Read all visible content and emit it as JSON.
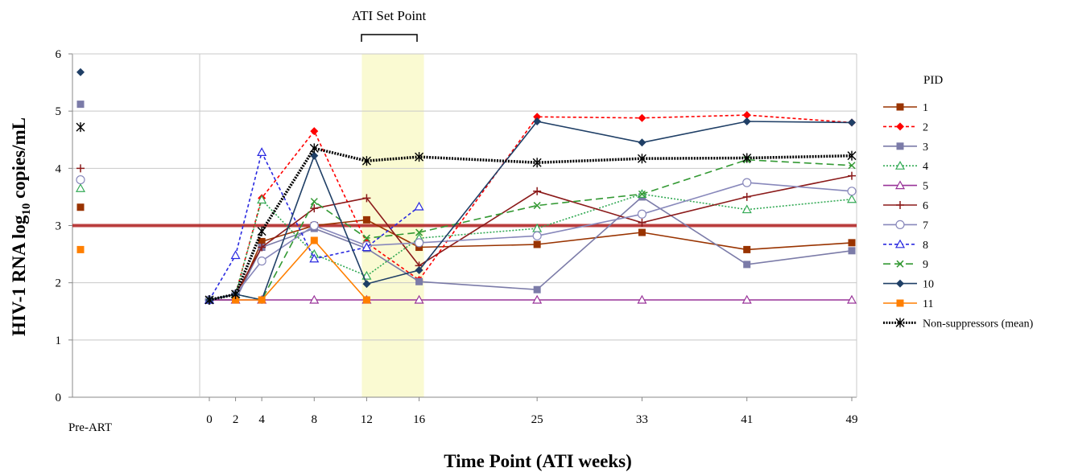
{
  "chart_data": {
    "type": "line",
    "title": "",
    "xlabel": "Time Point (ATI weeks)",
    "ylabel_main": "HIV-1 RNA log",
    "ylabel_sub": "10",
    "ylabel_rest": " copies/mL",
    "ylim": [
      0,
      6
    ],
    "yticks": [
      0,
      1,
      2,
      3,
      4,
      5,
      6
    ],
    "pre_art_label": "Pre-ART",
    "xticks": [
      0,
      2,
      4,
      8,
      12,
      16,
      25,
      33,
      41,
      49
    ],
    "xtick_labels": [
      "0",
      "2",
      "4",
      "8",
      "12",
      "16",
      "25",
      "33",
      "41",
      "49"
    ],
    "threshold": 3,
    "threshold_color": "#b22222",
    "shaded_range": [
      12,
      16
    ],
    "shaded_color": "#fafad2",
    "annotation": "ATI Set Point",
    "grid": true,
    "legend_title": "PID",
    "legend_position": "right",
    "series": [
      {
        "name": "1",
        "color": "#993300",
        "marker": "square",
        "dash": "solid",
        "pre_art": 3.32,
        "points": [
          [
            0,
            1.7
          ],
          [
            2,
            1.7
          ],
          [
            4,
            2.72
          ],
          [
            8,
            3.0
          ],
          [
            12,
            3.1
          ],
          [
            16,
            2.62
          ],
          [
            25,
            2.67
          ],
          [
            33,
            2.88
          ],
          [
            41,
            2.58
          ],
          [
            49,
            2.7
          ]
        ]
      },
      {
        "name": "2",
        "color": "#ff0000",
        "marker": "diamond",
        "dash": "short",
        "pre_art": null,
        "points": [
          [
            0,
            1.7
          ],
          [
            2,
            1.8
          ],
          [
            4,
            3.48
          ],
          [
            8,
            4.65
          ],
          [
            12,
            2.7
          ],
          [
            16,
            2.05
          ],
          [
            25,
            4.9
          ],
          [
            33,
            4.88
          ],
          [
            41,
            4.93
          ],
          [
            49,
            4.8
          ]
        ]
      },
      {
        "name": "3",
        "color": "#7b7ba8",
        "marker": "square",
        "dash": "solid",
        "pre_art": 5.12,
        "points": [
          [
            0,
            1.7
          ],
          [
            2,
            1.7
          ],
          [
            4,
            2.62
          ],
          [
            8,
            2.95
          ],
          [
            12,
            2.6
          ],
          [
            16,
            2.02
          ],
          [
            25,
            1.88
          ],
          [
            33,
            3.5
          ],
          [
            41,
            2.32
          ],
          [
            49,
            2.56
          ]
        ]
      },
      {
        "name": "4",
        "color": "#33aa55",
        "marker": "triangle-open",
        "dash": "dot",
        "pre_art": 3.65,
        "points": [
          [
            0,
            1.7
          ],
          [
            2,
            1.8
          ],
          [
            4,
            3.45
          ],
          [
            8,
            2.5
          ],
          [
            12,
            2.12
          ],
          [
            16,
            2.78
          ],
          [
            25,
            2.95
          ],
          [
            33,
            3.55
          ],
          [
            41,
            3.28
          ],
          [
            49,
            3.46
          ]
        ]
      },
      {
        "name": "5",
        "color": "#993399",
        "marker": "triangle-open",
        "dash": "solid",
        "pre_art": null,
        "points": [
          [
            0,
            1.7
          ],
          [
            2,
            1.7
          ],
          [
            4,
            1.7
          ],
          [
            8,
            1.7
          ],
          [
            12,
            1.7
          ],
          [
            16,
            1.7
          ],
          [
            25,
            1.7
          ],
          [
            33,
            1.7
          ],
          [
            41,
            1.7
          ],
          [
            49,
            1.7
          ]
        ]
      },
      {
        "name": "6",
        "color": "#8b1a1a",
        "marker": "plus",
        "dash": "solid",
        "pre_art": 4.0,
        "points": [
          [
            0,
            1.7
          ],
          [
            2,
            1.8
          ],
          [
            4,
            2.62
          ],
          [
            8,
            3.3
          ],
          [
            12,
            3.48
          ],
          [
            16,
            2.3
          ],
          [
            25,
            3.6
          ],
          [
            33,
            3.05
          ],
          [
            41,
            3.5
          ],
          [
            49,
            3.87
          ]
        ]
      },
      {
        "name": "7",
        "color": "#8888bb",
        "marker": "circle-open",
        "dash": "solid",
        "pre_art": 3.8,
        "points": [
          [
            0,
            1.7
          ],
          [
            2,
            1.8
          ],
          [
            4,
            2.38
          ],
          [
            8,
            3.0
          ],
          [
            12,
            2.65
          ],
          [
            16,
            2.7
          ],
          [
            25,
            2.82
          ],
          [
            33,
            3.2
          ],
          [
            41,
            3.75
          ],
          [
            49,
            3.6
          ]
        ]
      },
      {
        "name": "8",
        "color": "#2a2ae0",
        "marker": "triangle-open",
        "dash": "short",
        "pre_art": null,
        "points": [
          [
            0,
            1.7
          ],
          [
            2,
            2.48
          ],
          [
            4,
            4.28
          ],
          [
            8,
            2.42
          ],
          [
            12,
            2.62
          ],
          [
            16,
            3.33
          ]
        ]
      },
      {
        "name": "9",
        "color": "#339933",
        "marker": "x",
        "dash": "long",
        "pre_art": null,
        "points": [
          [
            0,
            1.7
          ],
          [
            2,
            1.8
          ],
          [
            4,
            1.7
          ],
          [
            8,
            3.42
          ],
          [
            12,
            2.78
          ],
          [
            16,
            2.88
          ],
          [
            25,
            3.35
          ],
          [
            33,
            3.55
          ],
          [
            41,
            4.15
          ],
          [
            49,
            4.05
          ]
        ]
      },
      {
        "name": "10",
        "color": "#1f3f66",
        "marker": "diamond",
        "dash": "solid",
        "pre_art": 5.68,
        "points": [
          [
            0,
            1.7
          ],
          [
            2,
            1.8
          ],
          [
            4,
            1.7
          ],
          [
            8,
            4.22
          ],
          [
            12,
            1.98
          ],
          [
            16,
            2.22
          ],
          [
            25,
            4.82
          ],
          [
            33,
            4.45
          ],
          [
            41,
            4.82
          ],
          [
            49,
            4.8
          ]
        ]
      },
      {
        "name": "11",
        "color": "#ff7f00",
        "marker": "square",
        "dash": "solid",
        "pre_art": 2.58,
        "points": [
          [
            2,
            1.7
          ],
          [
            4,
            1.7
          ],
          [
            8,
            2.74
          ],
          [
            12,
            1.7
          ]
        ]
      },
      {
        "name": "Non-suppressors (mean)",
        "color": "#000000",
        "marker": "asterisk",
        "dash": "dot-thick",
        "pre_art": 4.72,
        "points": [
          [
            0,
            1.7
          ],
          [
            2,
            1.8
          ],
          [
            4,
            2.9
          ],
          [
            8,
            4.35
          ],
          [
            12,
            4.13
          ],
          [
            16,
            4.2
          ],
          [
            25,
            4.1
          ],
          [
            33,
            4.17
          ],
          [
            41,
            4.18
          ],
          [
            49,
            4.22
          ]
        ]
      }
    ]
  }
}
